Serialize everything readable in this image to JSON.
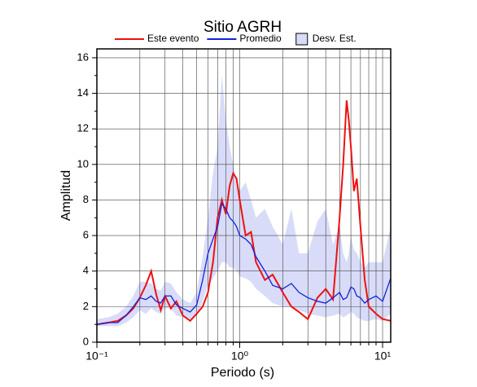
{
  "chart_data": {
    "type": "line",
    "title": "Sitio AGRH",
    "x_label": "Periodo (s)",
    "y_label": "Amplitud",
    "xscale": "log",
    "grid": true,
    "xlim": [
      0.1,
      11.4
    ],
    "ylim": [
      0,
      16.5
    ],
    "xticks": [
      {
        "value": 0.1,
        "label": "10⁻¹"
      },
      {
        "value": 1,
        "label": "10⁰"
      },
      {
        "value": 10,
        "label": "10¹"
      }
    ],
    "xminorticks": [
      0.2,
      0.3,
      0.4,
      0.5,
      0.6,
      0.7,
      0.8,
      0.9,
      2,
      3,
      4,
      5,
      6,
      7,
      8,
      9
    ],
    "yticks": [
      0,
      2,
      4,
      6,
      8,
      10,
      12,
      14,
      16
    ],
    "x": [
      0.1,
      0.12,
      0.14,
      0.16,
      0.18,
      0.2,
      0.22,
      0.24,
      0.26,
      0.28,
      0.3,
      0.33,
      0.36,
      0.4,
      0.45,
      0.5,
      0.55,
      0.6,
      0.65,
      0.7,
      0.75,
      0.8,
      0.85,
      0.9,
      0.95,
      1.0,
      1.1,
      1.2,
      1.3,
      1.5,
      1.7,
      2,
      2.3,
      2.6,
      3,
      3.5,
      4,
      4.5,
      5,
      5.3,
      5.6,
      5.8,
      6,
      6.3,
      6.6,
      7,
      7.5,
      8,
      9,
      10,
      11.4
    ],
    "band": {
      "name": "Desv. Est.",
      "color": "#d8dcf8",
      "upper": [
        1.3,
        1.4,
        1.6,
        2.0,
        2.6,
        3.4,
        3.4,
        3.3,
        3.0,
        2.9,
        3.4,
        3.3,
        2.8,
        2.4,
        2.2,
        2.8,
        4.8,
        7.0,
        9.5,
        11.0,
        15.0,
        12.5,
        11.0,
        10.0,
        9.0,
        8.5,
        9.0,
        8.0,
        7.0,
        7.5,
        6.5,
        5.5,
        7.5,
        5.0,
        5.0,
        6.8,
        7.5,
        5.5,
        6.5,
        5.0,
        4.5,
        5.0,
        6.0,
        5.2,
        5.0,
        4.5,
        4.2,
        4.5,
        4.5,
        4.5,
        6.5
      ],
      "lower": [
        0.9,
        0.9,
        0.9,
        1.1,
        1.4,
        1.8,
        1.6,
        1.9,
        1.7,
        1.6,
        1.9,
        1.9,
        1.5,
        1.4,
        1.3,
        1.5,
        2.3,
        3.2,
        3.6,
        4.0,
        4.5,
        4.5,
        4.2,
        4.2,
        4.0,
        3.7,
        3.6,
        3.4,
        3.0,
        2.6,
        2.2,
        2.0,
        2.0,
        1.8,
        1.6,
        1.5,
        1.4,
        1.5,
        1.6,
        1.4,
        1.5,
        1.6,
        1.7,
        1.6,
        1.4,
        1.3,
        1.2,
        1.2,
        1.3,
        1.2,
        1.6
      ]
    },
    "series": [
      {
        "name": "Este evento",
        "color": "#ee1111",
        "values": [
          1.0,
          1.1,
          1.2,
          1.5,
          1.9,
          2.5,
          3.2,
          4.0,
          2.7,
          1.8,
          2.6,
          1.9,
          2.3,
          1.5,
          1.2,
          1.6,
          2.0,
          2.8,
          4.5,
          7.0,
          8.0,
          7.2,
          8.8,
          9.5,
          9.2,
          8.0,
          6.0,
          6.2,
          4.5,
          3.5,
          3.8,
          2.8,
          2.0,
          1.7,
          1.3,
          2.5,
          3.0,
          2.4,
          7.0,
          10.0,
          13.6,
          12.5,
          11.0,
          8.5,
          9.2,
          6.5,
          3.5,
          2.0,
          1.6,
          1.3,
          1.2
        ]
      },
      {
        "name": "Promedio",
        "color": "#1122dd",
        "values": [
          1.0,
          1.1,
          1.1,
          1.5,
          2.0,
          2.5,
          2.4,
          2.6,
          2.3,
          2.2,
          2.6,
          2.6,
          2.1,
          1.9,
          1.7,
          2.1,
          3.5,
          5.0,
          5.8,
          6.5,
          7.8,
          7.5,
          7.0,
          6.8,
          6.5,
          6.0,
          5.8,
          5.5,
          4.8,
          4.0,
          3.2,
          3.0,
          3.3,
          2.8,
          2.5,
          2.3,
          2.2,
          2.5,
          2.8,
          2.4,
          2.5,
          2.8,
          3.1,
          3.0,
          2.6,
          2.5,
          2.2,
          2.4,
          2.6,
          2.3,
          3.6
        ]
      }
    ]
  }
}
